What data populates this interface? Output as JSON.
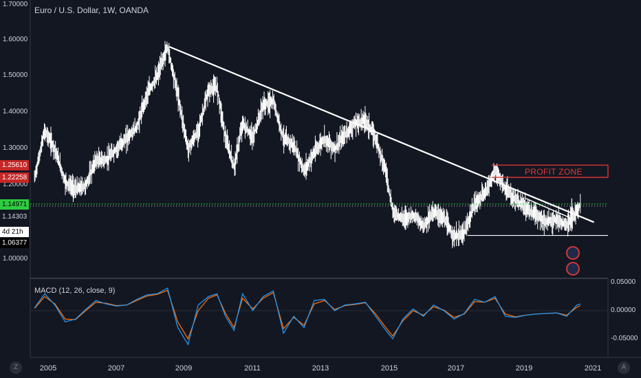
{
  "title": "Euro / U.S. Dollar, 1W, OANDA",
  "macd_title": "MACD (12, 26, close, 9)",
  "profit_zone_label": "PROFIT ZONE",
  "price_axis_labels": [
    "1.70000",
    "1.60000",
    "1.50000",
    "1.40000",
    "1.30000",
    "1.20000",
    "1.00000"
  ],
  "price_tags": {
    "upper": "1.25610",
    "lower": "1.22258",
    "current": "1.14971",
    "prev_close": "1.14303",
    "countdown": "4d 21h",
    "low_line": "1.06377"
  },
  "macd_axis_labels": [
    "0.05000",
    "0.00000",
    "-0.05000"
  ],
  "x_axis_labels": [
    "2005",
    "2007",
    "2009",
    "2011",
    "2013",
    "2015",
    "2017",
    "2019",
    "2021"
  ],
  "corner_buttons": {
    "left": "Z",
    "right": "A"
  },
  "colors": {
    "background": "#131722",
    "candle": "#ffffff",
    "trendline": "#ffffff",
    "profit_zone": "#e53935",
    "current_line": "#2ecc40",
    "macd_line": "#2196f3",
    "signal_line": "#ff6d00"
  },
  "chart_data": {
    "type": "line",
    "title": "Euro / U.S. Dollar, 1W, OANDA",
    "xlabel": "",
    "ylabel": "",
    "ylim": [
      0.95,
      1.72
    ],
    "x": [
      2004.6,
      2004.9,
      2005.2,
      2005.5,
      2005.8,
      2006.1,
      2006.4,
      2006.7,
      2007.0,
      2007.3,
      2007.6,
      2007.9,
      2008.2,
      2008.5,
      2008.8,
      2009.1,
      2009.4,
      2009.7,
      2009.95,
      2010.2,
      2010.45,
      2010.7,
      2011.0,
      2011.3,
      2011.6,
      2011.9,
      2012.2,
      2012.5,
      2012.8,
      2013.1,
      2013.4,
      2013.7,
      2014.0,
      2014.3,
      2014.6,
      2014.9,
      2015.1,
      2015.4,
      2015.7,
      2016.0,
      2016.3,
      2016.6,
      2016.9,
      2017.2,
      2017.5,
      2017.8,
      2018.1,
      2018.4,
      2018.7,
      2019.0,
      2019.3,
      2019.6,
      2019.9,
      2020.2,
      2020.5,
      2020.6
    ],
    "series": [
      {
        "values": [
          1.22,
          1.35,
          1.3,
          1.21,
          1.19,
          1.2,
          1.27,
          1.27,
          1.3,
          1.33,
          1.36,
          1.45,
          1.5,
          1.58,
          1.45,
          1.3,
          1.35,
          1.46,
          1.47,
          1.33,
          1.25,
          1.37,
          1.33,
          1.42,
          1.43,
          1.33,
          1.31,
          1.24,
          1.29,
          1.33,
          1.3,
          1.34,
          1.37,
          1.38,
          1.33,
          1.24,
          1.13,
          1.11,
          1.12,
          1.09,
          1.13,
          1.11,
          1.06,
          1.07,
          1.15,
          1.18,
          1.24,
          1.19,
          1.16,
          1.14,
          1.12,
          1.1,
          1.11,
          1.09,
          1.13,
          1.15
        ]
      }
    ],
    "trendline": {
      "x1": 2008.55,
      "y1": 1.58,
      "x2": 2021.0,
      "y2": 1.1
    },
    "profit_zone": {
      "top": 1.2561,
      "bottom": 1.22258,
      "x_start": 2018.0
    },
    "current_price": 1.14971,
    "support_line": 1.06377,
    "macd": {
      "ylim": [
        -0.075,
        0.06
      ],
      "macd": [
        0.005,
        0.03,
        0.01,
        -0.02,
        -0.015,
        0.002,
        0.018,
        0.012,
        0.008,
        0.01,
        0.02,
        0.028,
        0.03,
        0.04,
        -0.03,
        -0.06,
        0.01,
        0.025,
        0.03,
        -0.01,
        -0.035,
        0.03,
        0.0,
        0.025,
        0.035,
        -0.04,
        -0.01,
        -0.03,
        0.018,
        0.02,
        0.0,
        0.01,
        0.012,
        0.015,
        -0.01,
        -0.035,
        -0.05,
        -0.015,
        0.003,
        -0.01,
        0.01,
        0.0,
        -0.015,
        -0.005,
        0.02,
        0.015,
        0.025,
        -0.01,
        -0.012,
        -0.008,
        -0.006,
        -0.005,
        -0.004,
        -0.01,
        0.01,
        0.012
      ],
      "signal": [
        0.004,
        0.025,
        0.012,
        -0.015,
        -0.016,
        0.0,
        0.015,
        0.013,
        0.009,
        0.01,
        0.018,
        0.026,
        0.029,
        0.036,
        -0.02,
        -0.05,
        0.0,
        0.022,
        0.028,
        -0.005,
        -0.03,
        0.022,
        0.003,
        0.022,
        0.032,
        -0.032,
        -0.012,
        -0.026,
        0.012,
        0.018,
        0.002,
        0.009,
        0.011,
        0.014,
        -0.006,
        -0.03,
        -0.045,
        -0.018,
        0.0,
        -0.008,
        0.007,
        0.001,
        -0.012,
        -0.006,
        0.016,
        0.015,
        0.022,
        -0.006,
        -0.011,
        -0.008,
        -0.006,
        -0.005,
        -0.004,
        -0.008,
        0.006,
        0.009
      ]
    }
  }
}
